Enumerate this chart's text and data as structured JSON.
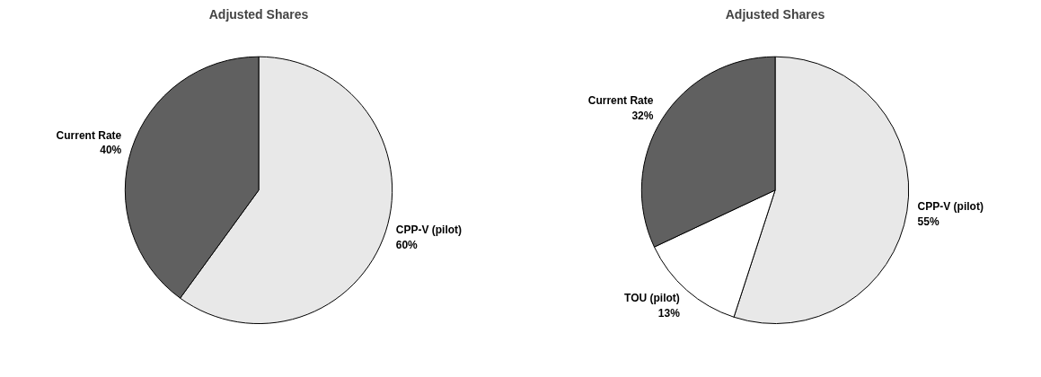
{
  "chart_data": [
    {
      "type": "pie",
      "title": "Adjusted Shares",
      "categories": [
        "CPP-V (pilot)",
        "Current Rate"
      ],
      "values": [
        60,
        40
      ],
      "value_labels": [
        "60%",
        "40%"
      ],
      "colors": [
        "#e8e8e8",
        "#606060"
      ]
    },
    {
      "type": "pie",
      "title": "Adjusted Shares",
      "categories": [
        "CPP-V (pilot)",
        "TOU (pilot)",
        "Current Rate"
      ],
      "values": [
        55,
        13,
        32
      ],
      "value_labels": [
        "55%",
        "13%",
        "32%"
      ],
      "colors": [
        "#e8e8e8",
        "#ffffff",
        "#606060"
      ]
    }
  ]
}
